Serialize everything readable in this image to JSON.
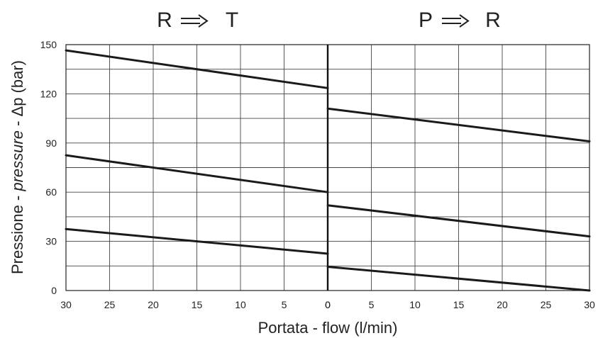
{
  "chart_data": {
    "type": "line",
    "panels": [
      {
        "title_from": "R",
        "title_to": "T",
        "x_ticks": [
          "30",
          "25",
          "20",
          "15",
          "10",
          "5",
          "0"
        ],
        "xlim": [
          30,
          0
        ],
        "series": [
          {
            "x": [
              30,
              0
            ],
            "y": [
              146.5,
              123.5
            ]
          },
          {
            "x": [
              30,
              0
            ],
            "y": [
              82.5,
              60
            ]
          },
          {
            "x": [
              30,
              0
            ],
            "y": [
              37.5,
              22.5
            ]
          }
        ]
      },
      {
        "title_from": "P",
        "title_to": "R",
        "x_ticks": [
          "0",
          "5",
          "10",
          "15",
          "20",
          "25",
          "30"
        ],
        "xlim": [
          0,
          30
        ],
        "series": [
          {
            "x": [
              0,
              30
            ],
            "y": [
              111,
              91
            ]
          },
          {
            "x": [
              0,
              30
            ],
            "y": [
              52,
              33
            ]
          },
          {
            "x": [
              0,
              30
            ],
            "y": [
              14.5,
              0
            ]
          }
        ]
      }
    ],
    "ylabel_part1": "Pressione - ",
    "ylabel_part2": "pressure",
    "ylabel_part3": " - Δp (bar)",
    "xlabel": "Portata - flow (l/min)",
    "y_ticks": [
      "0",
      "30",
      "60",
      "90",
      "120",
      "150"
    ],
    "ylim": [
      0,
      150
    ],
    "grid": true
  }
}
